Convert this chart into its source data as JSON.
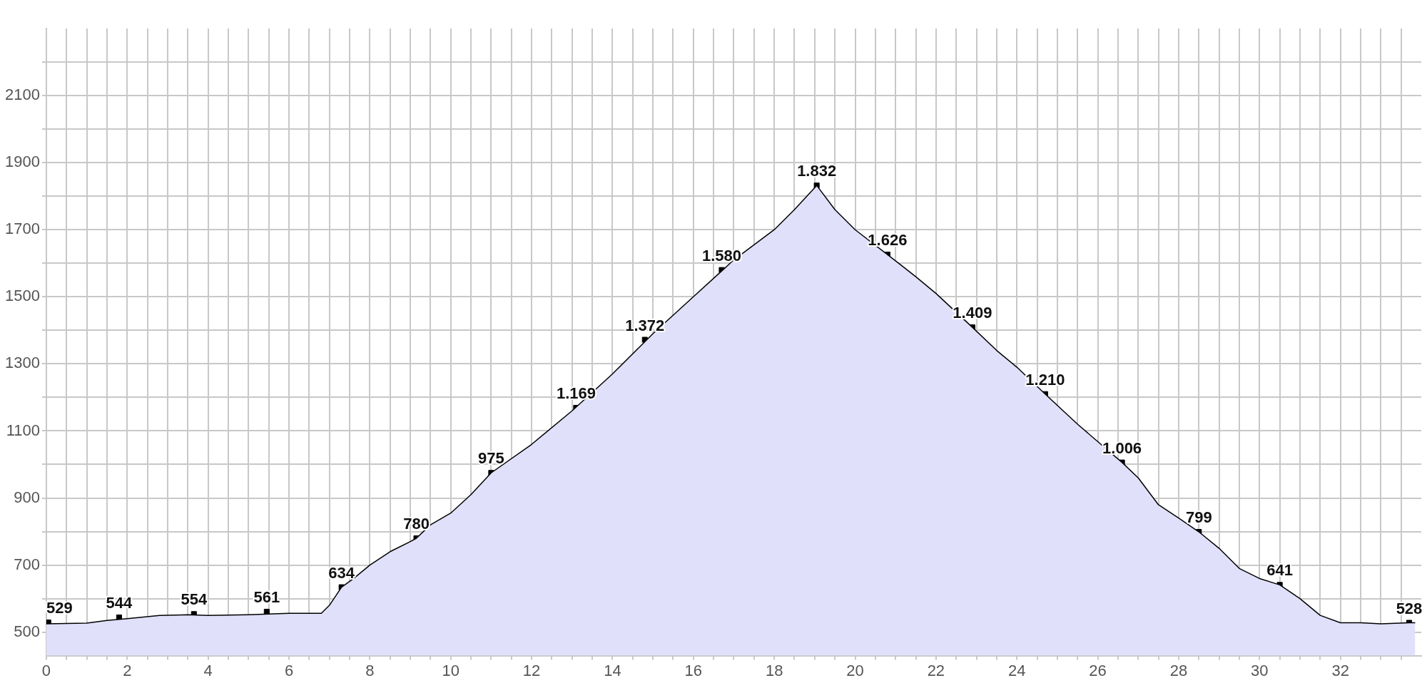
{
  "chart_data": {
    "type": "area",
    "grid": true,
    "legend": false,
    "xlim": [
      0,
      34
    ],
    "ylim": [
      430,
      2300
    ],
    "xticks": [
      0,
      {
        "value": 0.5,
        "label": null
      },
      {
        "value": 1,
        "label": null
      },
      {
        "value": 1.5,
        "label": null
      },
      2,
      {
        "value": 2.5,
        "label": null
      },
      {
        "value": 3,
        "label": null
      },
      {
        "value": 3.5,
        "label": null
      },
      4,
      {
        "value": 4.5,
        "label": null
      },
      {
        "value": 5,
        "label": null
      },
      {
        "value": 5.5,
        "label": null
      },
      6,
      {
        "value": 6.5,
        "label": null
      },
      {
        "value": 7,
        "label": null
      },
      {
        "value": 7.5,
        "label": null
      },
      8,
      {
        "value": 8.5,
        "label": null
      },
      {
        "value": 9,
        "label": null
      },
      {
        "value": 9.5,
        "label": null
      },
      10,
      {
        "value": 10.5,
        "label": null
      },
      {
        "value": 11,
        "label": null
      },
      {
        "value": 11.5,
        "label": null
      },
      12,
      {
        "value": 12.5,
        "label": null
      },
      {
        "value": 13,
        "label": null
      },
      {
        "value": 13.5,
        "label": null
      },
      14,
      {
        "value": 14.5,
        "label": null
      },
      {
        "value": 15,
        "label": null
      },
      {
        "value": 15.5,
        "label": null
      },
      16,
      {
        "value": 16.5,
        "label": null
      },
      {
        "value": 17,
        "label": null
      },
      {
        "value": 17.5,
        "label": null
      },
      18,
      {
        "value": 18.5,
        "label": null
      },
      {
        "value": 19,
        "label": null
      },
      {
        "value": 19.5,
        "label": null
      },
      20,
      {
        "value": 20.5,
        "label": null
      },
      {
        "value": 21,
        "label": null
      },
      {
        "value": 21.5,
        "label": null
      },
      22,
      {
        "value": 22.5,
        "label": null
      },
      {
        "value": 23,
        "label": null
      },
      {
        "value": 23.5,
        "label": null
      },
      24,
      {
        "value": 24.5,
        "label": null
      },
      {
        "value": 25,
        "label": null
      },
      {
        "value": 25.5,
        "label": null
      },
      26,
      {
        "value": 26.5,
        "label": null
      },
      {
        "value": 27,
        "label": null
      },
      {
        "value": 27.5,
        "label": null
      },
      28,
      {
        "value": 28.5,
        "label": null
      },
      {
        "value": 29,
        "label": null
      },
      {
        "value": 29.5,
        "label": null
      },
      30,
      {
        "value": 30.5,
        "label": null
      },
      {
        "value": 31,
        "label": null
      },
      {
        "value": 31.5,
        "label": null
      },
      32,
      {
        "value": 32.5,
        "label": null
      },
      {
        "value": 33,
        "label": null
      },
      {
        "value": 33.5,
        "label": null
      }
    ],
    "yticks": [
      500,
      {
        "value": 600,
        "label": null
      },
      700,
      {
        "value": 800,
        "label": null
      },
      900,
      {
        "value": 1000,
        "label": null
      },
      1100,
      {
        "value": 1200,
        "label": null
      },
      1300,
      {
        "value": 1400,
        "label": null
      },
      1500,
      {
        "value": 1600,
        "label": null
      },
      1700,
      {
        "value": 1800,
        "label": null
      },
      1900,
      {
        "value": 2000,
        "label": null
      },
      2100,
      {
        "value": 2200,
        "label": null
      }
    ],
    "series": [
      {
        "color": "#e0e0fb",
        "x": [
          0,
          1,
          1.5,
          2,
          2.8,
          3.5,
          4,
          5,
          6,
          6.8,
          7,
          7.3,
          7.6,
          8,
          8.5,
          9,
          9.15,
          9.5,
          10,
          10.5,
          11,
          12,
          13,
          14,
          15,
          16,
          17,
          18,
          18.5,
          19.05,
          19.5,
          20,
          20.8,
          21.5,
          22,
          22.9,
          23.5,
          24,
          24.7,
          25.5,
          26.6,
          27,
          27.5,
          28,
          28.5,
          29,
          29.5,
          30,
          30.5,
          31,
          31.5,
          32,
          32.5,
          33,
          33.7,
          33.85
        ],
        "values": [
          525,
          527,
          535,
          540,
          550,
          552,
          550,
          552,
          556,
          556,
          580,
          634,
          660,
          700,
          740,
          770,
          780,
          820,
          855,
          910,
          975,
          1060,
          1160,
          1270,
          1390,
          1500,
          1610,
          1700,
          1760,
          1832,
          1760,
          1700,
          1626,
          1560,
          1510,
          1409,
          1340,
          1290,
          1210,
          1120,
          1006,
          960,
          880,
          840,
          799,
          750,
          690,
          660,
          641,
          600,
          550,
          528,
          528,
          525,
          528,
          528
        ]
      },
      {
        "type": "scatter",
        "marker": "square",
        "color": "#000000",
        "x": [
          0.05,
          1.8,
          3.65,
          5.45,
          7.3,
          9.15,
          11,
          13.1,
          14.8,
          16.7,
          19.05,
          20.8,
          22.9,
          24.7,
          26.6,
          28.5,
          30.5,
          33.7
        ],
        "values": [
          529,
          544,
          554,
          561,
          634,
          780,
          975,
          1169,
          1372,
          1580,
          1832,
          1626,
          1409,
          1210,
          1006,
          799,
          641,
          528
        ],
        "value_labels": [
          "529",
          "544",
          "554",
          "561",
          "634",
          "780",
          "975",
          "1.169",
          "1.372",
          "1.580",
          "1.832",
          "1.626",
          "1.409",
          "1.210",
          "1.006",
          "799",
          "641",
          "528"
        ]
      }
    ]
  }
}
